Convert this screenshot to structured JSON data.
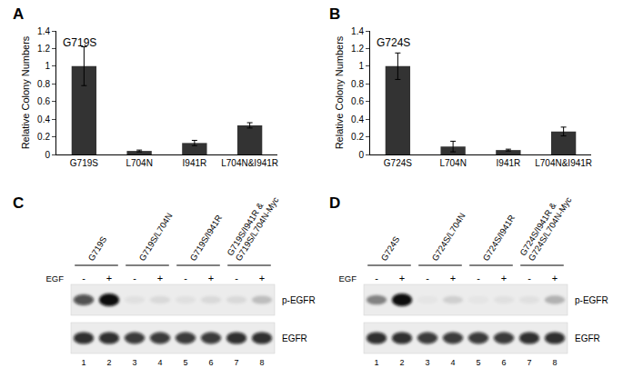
{
  "chart_data": [
    {
      "type": "bar",
      "panel": "A",
      "title": "G719S",
      "categories": [
        "G719S",
        "L704N",
        "I941R",
        "L704N&I941R"
      ],
      "values": [
        1.0,
        0.04,
        0.13,
        0.33
      ],
      "error": [
        0.22,
        0.01,
        0.03,
        0.03
      ],
      "color": "#333333",
      "y_label": "Relative Colony Numbers",
      "ylim": [
        0,
        1.4
      ],
      "yticks": [
        0,
        0.2,
        0.4,
        0.6,
        0.8,
        1,
        1.2,
        1.4
      ],
      "grid": false
    },
    {
      "type": "bar",
      "panel": "B",
      "title": "G724S",
      "categories": [
        "G724S",
        "L704N",
        "I941R",
        "L704N&I941R"
      ],
      "values": [
        1.0,
        0.09,
        0.05,
        0.26
      ],
      "error": [
        0.15,
        0.06,
        0.01,
        0.05
      ],
      "color": "#333333",
      "y_label": "Relative Colony Numbers",
      "ylim": [
        0,
        1.4
      ],
      "yticks": [
        0,
        0.2,
        0.4,
        0.6,
        0.8,
        1,
        1.2,
        1.4
      ],
      "grid": false
    }
  ],
  "blots": [
    {
      "panel": "C",
      "treatment": "EGF",
      "groups": [
        {
          "lines": [
            "G719S"
          ]
        },
        {
          "lines": [
            "G719S/L704N"
          ]
        },
        {
          "lines": [
            "G719S/I941R"
          ]
        },
        {
          "lines": [
            "G719S/I941R &",
            "G719S/L704N-Myc"
          ]
        }
      ],
      "egf": [
        "-",
        "+",
        "-",
        "+",
        "-",
        "+",
        "-",
        "+"
      ],
      "lane_numbers": [
        1,
        2,
        3,
        4,
        5,
        6,
        7,
        8
      ],
      "rows": [
        {
          "name": "p-EGFR",
          "intensity": [
            0.7,
            1,
            0.05,
            0.08,
            0.05,
            0.08,
            0.08,
            0.2
          ]
        },
        {
          "name": "EGFR",
          "intensity": [
            0.85,
            0.85,
            0.8,
            0.8,
            0.8,
            0.8,
            0.85,
            0.85
          ]
        }
      ]
    },
    {
      "panel": "D",
      "treatment": "EGF",
      "groups": [
        {
          "lines": [
            "G724S"
          ]
        },
        {
          "lines": [
            "G724S/L704N"
          ]
        },
        {
          "lines": [
            "G724S/I941R"
          ]
        },
        {
          "lines": [
            "G724S/I941R &",
            "G724S/L704N-Myc"
          ]
        }
      ],
      "egf": [
        "-",
        "+",
        "-",
        "+",
        "-",
        "+",
        "-",
        "+"
      ],
      "lane_numbers": [
        1,
        2,
        3,
        4,
        5,
        6,
        7,
        8
      ],
      "rows": [
        {
          "name": "p-EGFR",
          "intensity": [
            0.45,
            1,
            0.03,
            0.12,
            0.03,
            0.05,
            0.05,
            0.25
          ]
        },
        {
          "name": "EGFR",
          "intensity": [
            0.85,
            0.85,
            0.8,
            0.8,
            0.8,
            0.8,
            0.85,
            0.85
          ]
        }
      ]
    }
  ]
}
